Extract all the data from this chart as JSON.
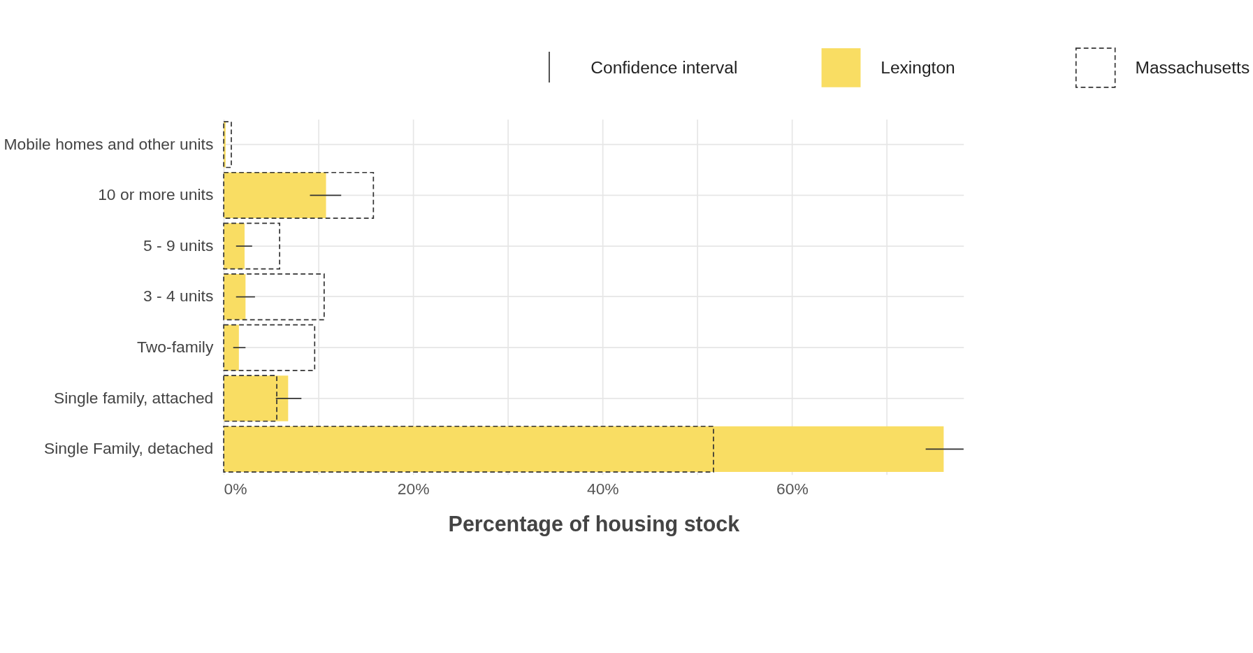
{
  "chart_data": {
    "type": "bar",
    "orientation": "horizontal",
    "xlabel": "Percentage of housing stock",
    "categories": [
      "Mobile homes and other units",
      "10 or more units",
      "5 - 9 units",
      "3 - 4 units",
      "Two-family",
      "Single family, attached",
      "Single Family, detached"
    ],
    "series": [
      {
        "name": "Lexington",
        "color": "#f9dd63",
        "values": [
          0.2,
          10.8,
          2.2,
          2.3,
          1.6,
          6.8,
          76.0
        ],
        "errors": [
          null,
          [
            9.1,
            12.4
          ],
          [
            1.3,
            3.0
          ],
          [
            1.3,
            3.3
          ],
          [
            1.0,
            2.3
          ],
          [
            5.5,
            8.2
          ],
          [
            74.1,
            78.1
          ]
        ]
      },
      {
        "name": "Massachusetts",
        "color": "#333333",
        "line_style": "dashed",
        "values": [
          0.8,
          15.8,
          5.9,
          10.6,
          9.6,
          5.6,
          51.7
        ]
      }
    ],
    "annotations": [
      "Confidence interval"
    ],
    "xlim": [
      0,
      78.1
    ],
    "xticks": [
      {
        "value": 0,
        "label": "0%"
      },
      {
        "value": 10,
        "label": null
      },
      {
        "value": 20,
        "label": "20%"
      },
      {
        "value": 30,
        "label": null
      },
      {
        "value": 40,
        "label": "40%"
      },
      {
        "value": 50,
        "label": null
      },
      {
        "value": 60,
        "label": "60%"
      },
      {
        "value": 70,
        "label": null
      }
    ],
    "grid": true,
    "legend": "top"
  }
}
